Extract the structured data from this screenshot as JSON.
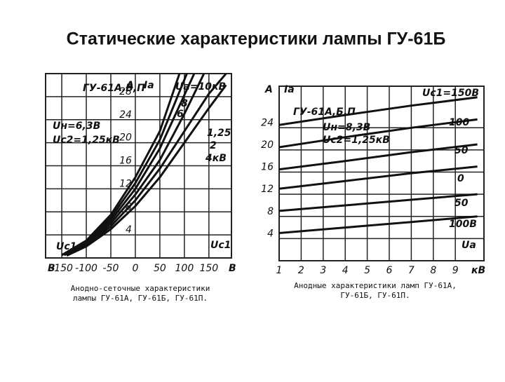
{
  "title": "Статические характеристики лампы ГУ-61Б",
  "chart_data": [
    {
      "type": "line",
      "model": "ГУ-61А,Б,П",
      "notes": [
        "Uн=6,3В",
        "Uc2=1,25кВ"
      ],
      "y_label": "Ia",
      "y_unit": "A",
      "x_label": "Uc1",
      "x_unit": "В",
      "caption": [
        "Анодно-сеточные характеристики",
        "лампы ГУ-61А, ГУ-61Б, ГУ-61П."
      ],
      "xlim": [
        -183,
        196
      ],
      "ylim": [
        0,
        32
      ],
      "xticks": [
        -150,
        -100,
        -50,
        0,
        50,
        100,
        150
      ],
      "yticks": [
        4,
        8,
        12,
        16,
        20,
        24,
        28
      ],
      "grid": true,
      "color": "#111111",
      "series": [
        {
          "name": "Ua=10кВ",
          "x": [
            -150,
            -100,
            -50,
            0,
            50,
            90
          ],
          "values": [
            0.5,
            3,
            7.5,
            14,
            22,
            32
          ]
        },
        {
          "name": "8",
          "x": [
            -150,
            -100,
            -50,
            0,
            50,
            105
          ],
          "values": [
            0.5,
            2.8,
            7,
            13,
            20.5,
            32
          ]
        },
        {
          "name": "6",
          "x": [
            -145,
            -100,
            -50,
            0,
            50,
            120
          ],
          "values": [
            0.5,
            2.5,
            6.5,
            12,
            19,
            32
          ]
        },
        {
          "name": "1,25",
          "x": [
            -140,
            -100,
            -50,
            0,
            50,
            100,
            150,
            185
          ],
          "values": [
            0.4,
            2,
            5,
            9,
            14,
            20,
            26,
            30
          ]
        },
        {
          "name": "2",
          "x": [
            -140,
            -100,
            -50,
            0,
            50,
            100,
            150,
            185
          ],
          "values": [
            0.5,
            2.2,
            5.5,
            10,
            15.5,
            22,
            28.5,
            32
          ]
        },
        {
          "name": "4кВ",
          "x": [
            -145,
            -100,
            -50,
            0,
            50,
            100,
            140
          ],
          "values": [
            0.5,
            2.4,
            6,
            11,
            17,
            25,
            32
          ]
        }
      ]
    },
    {
      "type": "line",
      "model": "ГУ-61А,Б,П",
      "notes": [
        "Uн=8,3В",
        "Uc2=1,25кВ"
      ],
      "y_label": "Ia",
      "y_unit": "A",
      "x_label": "Ua",
      "x_unit": "кВ",
      "caption": [
        "Анодные характеристики ламп ГУ-61А,",
        "ГУ-61Б, ГУ-61П."
      ],
      "xlim": [
        1,
        10.3
      ],
      "ylim": [
        0,
        31.5
      ],
      "xticks": [
        1,
        2,
        3,
        4,
        5,
        6,
        7,
        8,
        9
      ],
      "yticks": [
        4,
        8,
        12,
        16,
        20,
        24
      ],
      "grid": true,
      "color": "#111111",
      "series": [
        {
          "name": "Uc1=150В",
          "x": [
            1,
            4,
            7,
            10
          ],
          "values": [
            24.5,
            26.3,
            28,
            29.5
          ]
        },
        {
          "name": "100",
          "x": [
            1,
            4,
            7,
            10
          ],
          "values": [
            20.5,
            22.3,
            24,
            25.5
          ]
        },
        {
          "name": "50",
          "x": [
            1,
            4,
            7,
            10
          ],
          "values": [
            16.5,
            18,
            19.6,
            21
          ]
        },
        {
          "name": "0",
          "x": [
            1,
            4,
            7,
            10
          ],
          "values": [
            13,
            14.4,
            15.8,
            17
          ]
        },
        {
          "name": "50",
          "x": [
            1,
            4,
            7,
            10
          ],
          "values": [
            9,
            10,
            11,
            12
          ]
        },
        {
          "name": "100В",
          "x": [
            1,
            4,
            7,
            10
          ],
          "values": [
            5,
            6,
            7,
            8
          ]
        }
      ]
    }
  ]
}
